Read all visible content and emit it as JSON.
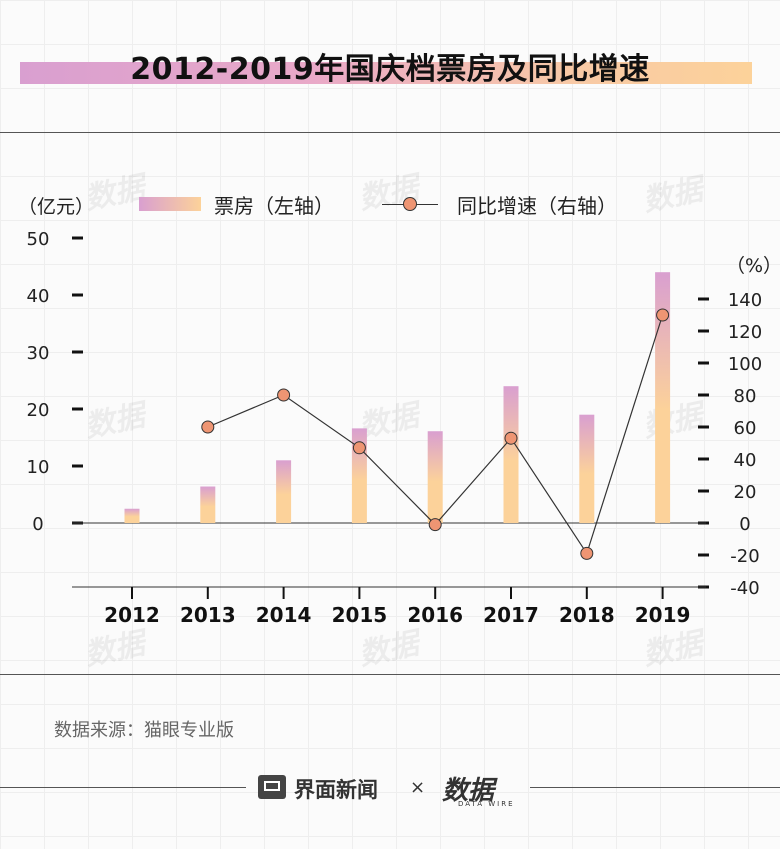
{
  "title": "2012-2019年国庆档票房及同比增速",
  "units": {
    "left": "（亿元）",
    "right": "（%）"
  },
  "legend": {
    "bar_label": "票房（左轴）",
    "line_label": "同比增速（右轴）"
  },
  "source": "数据来源：猫眼专业版",
  "footer": {
    "brand": "界面新闻",
    "times": "×",
    "partner": "数据",
    "partner_sub": "DATA WIRE"
  },
  "watermark": "数据",
  "colors": {
    "bar_top": "#d99fd0",
    "bar_bottom": "#fcd29a",
    "dot_fill": "#ee9573",
    "line": "#333333"
  },
  "chart_data": {
    "type": "bar",
    "categories": [
      "2012",
      "2013",
      "2014",
      "2015",
      "2016",
      "2017",
      "2018",
      "2019"
    ],
    "series": [
      {
        "name": "票房（左轴）",
        "type": "bar",
        "axis": "left",
        "values": [
          2.5,
          6.4,
          11.0,
          16.6,
          16.1,
          24.0,
          19.0,
          44.0
        ]
      },
      {
        "name": "同比增速（右轴）",
        "type": "line",
        "axis": "right",
        "values": [
          null,
          60,
          80,
          47,
          -1,
          53,
          -19,
          130
        ]
      }
    ],
    "y_left": {
      "ylim": [
        0,
        50
      ],
      "ticks": [
        "50",
        "40",
        "30",
        "20",
        "10",
        "0"
      ]
    },
    "y_right": {
      "ylim": [
        -40,
        140
      ],
      "ticks": [
        "140",
        "120",
        "100",
        "80",
        "60",
        "40",
        "20",
        "0",
        "-20",
        "-40"
      ]
    }
  }
}
